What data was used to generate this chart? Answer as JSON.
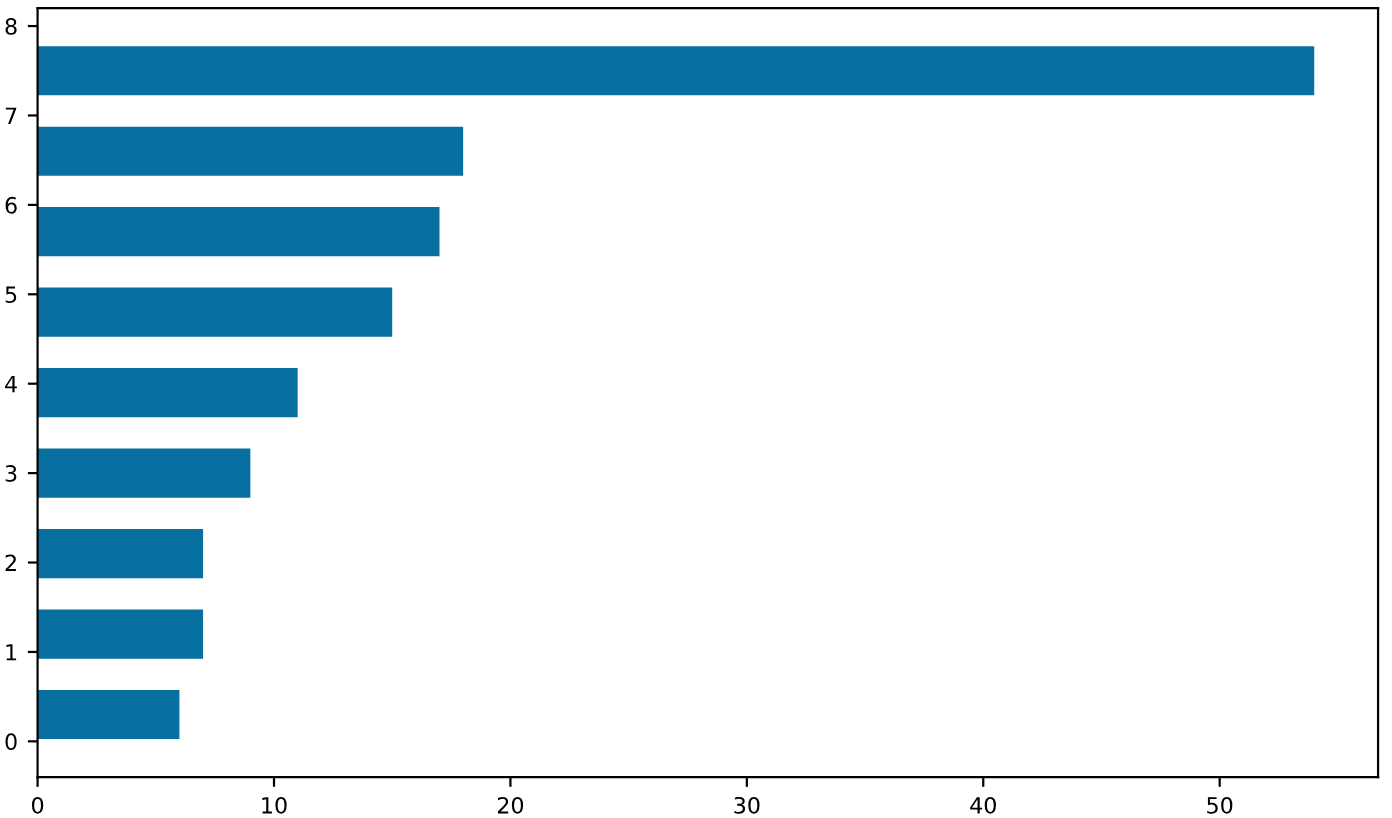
{
  "chart_data": {
    "type": "bar",
    "orientation": "horizontal",
    "x": [
      0.3,
      1.2,
      2.1,
      3.0,
      3.9,
      4.8,
      5.7,
      6.6,
      7.5
    ],
    "values": [
      6,
      7,
      7,
      9,
      11,
      15,
      17,
      18,
      54
    ],
    "color": "#0870a0",
    "xlim": [
      0,
      56.7
    ],
    "xticks": [
      0,
      10,
      20,
      30,
      40,
      50
    ],
    "ylim": [
      -0.4,
      8.2
    ],
    "yticks": [
      0,
      1,
      2,
      3,
      4,
      5,
      6,
      7,
      8
    ],
    "grid": false,
    "legend": false
  }
}
